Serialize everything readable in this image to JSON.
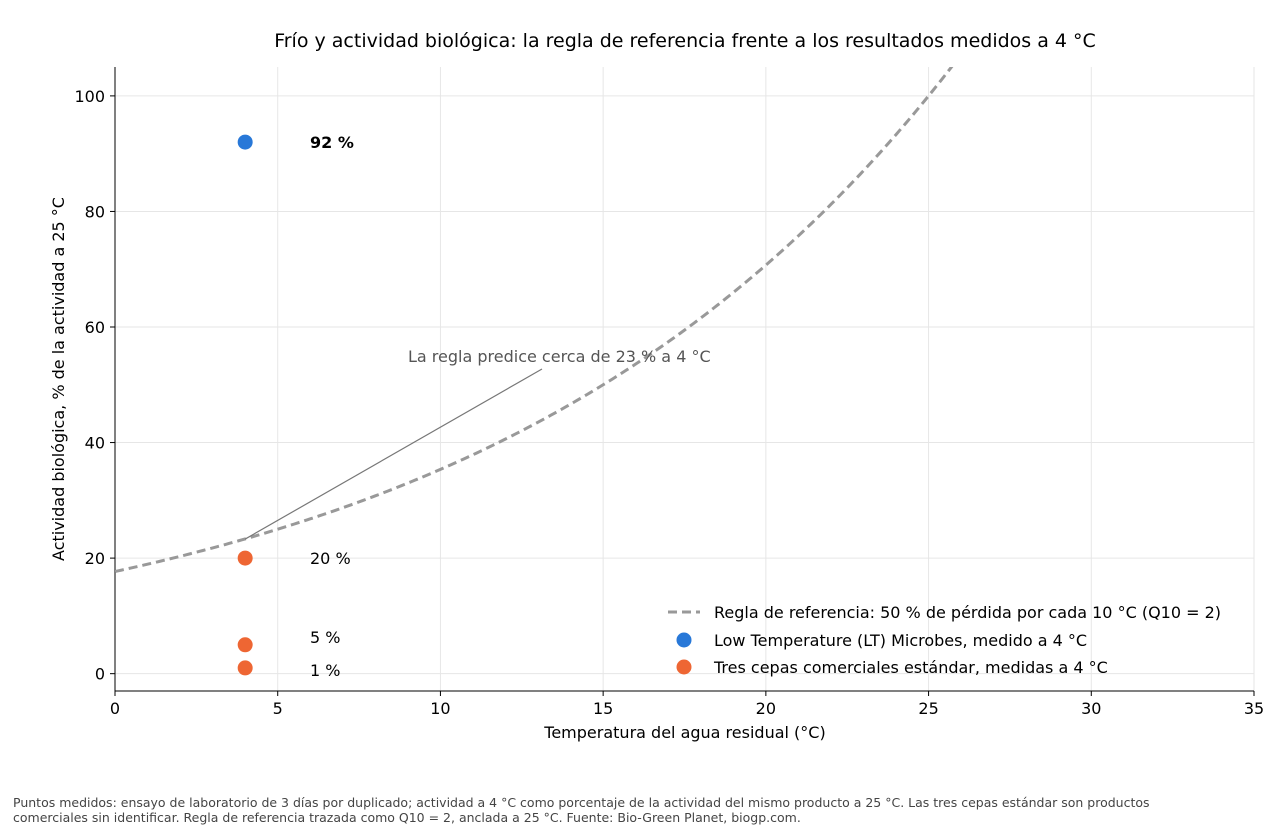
{
  "chart_data": {
    "type": "scatter",
    "title": "Frío y actividad biológica: la regla de referencia frente a los resultados medidos a 4 °C",
    "xlabel": "Temperatura del agua residual (°C)",
    "ylabel": "Actividad biológica, % de la actividad a 25 °C",
    "xlim": [
      0,
      35
    ],
    "ylim": [
      -3,
      105
    ],
    "xticks": [
      0,
      5,
      10,
      15,
      20,
      25,
      30,
      35
    ],
    "yticks": [
      0,
      20,
      40,
      60,
      80,
      100
    ],
    "grid": true,
    "legend_position": "bottom-right",
    "series": [
      {
        "name": "Regla de referencia: 50 % de pérdida por cada 10 °C (Q10 = 2)",
        "kind": "line",
        "style": "dashed",
        "color": "#999999",
        "formula": "100 * 2^((T - 25) / 10)",
        "x_range": [
          0,
          35
        ]
      },
      {
        "name": "Low Temperature (LT) Microbes, medido a 4 °C",
        "kind": "scatter",
        "color": "#2878d8",
        "points": [
          {
            "x": 4,
            "y": 92,
            "label": "92 %"
          }
        ]
      },
      {
        "name": "Tres cepas comerciales estándar, medidas a 4 °C",
        "kind": "scatter",
        "color": "#ee6633",
        "points": [
          {
            "x": 4,
            "y": 20,
            "label": "20 %"
          },
          {
            "x": 4,
            "y": 5,
            "label": "5 %"
          },
          {
            "x": 4,
            "y": 1,
            "label": "1 %"
          }
        ]
      }
    ],
    "annotations": [
      {
        "text": "La regla predice cerca de 23 % a 4 °C",
        "point": {
          "x": 4,
          "y": 23.3
        }
      }
    ]
  },
  "footnote": "Puntos medidos: ensayo de laboratorio de 3 días por duplicado; actividad a 4 °C como porcentaje de la actividad del mismo producto a 25 °C. Las tres cepas estándar son productos comerciales sin identificar. Regla de referencia trazada como Q10 = 2, anclada a 25 °C. Fuente: Bio-Green Planet, biogp.com."
}
